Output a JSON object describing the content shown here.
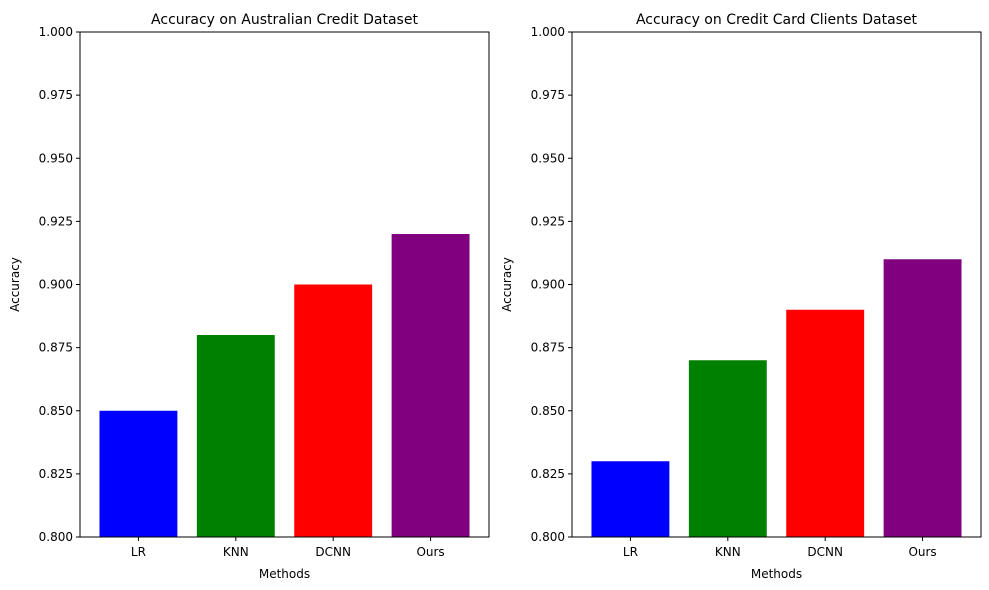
{
  "chart_data": [
    {
      "type": "bar",
      "title": "Accuracy on Australian Credit Dataset",
      "xlabel": "Methods",
      "ylabel": "Accuracy",
      "categories": [
        "LR",
        "KNN",
        "DCNN",
        "Ours"
      ],
      "values": [
        0.85,
        0.88,
        0.9,
        0.92
      ],
      "colors": [
        "#0000ff",
        "#008000",
        "#ff0000",
        "#800080"
      ],
      "ylim": [
        0.8,
        1.0
      ],
      "yticks": [
        "0.800",
        "0.825",
        "0.850",
        "0.875",
        "0.900",
        "0.925",
        "0.950",
        "0.975",
        "1.000"
      ],
      "grid": false,
      "legend": "none"
    },
    {
      "type": "bar",
      "title": "Accuracy on Credit Card Clients Dataset",
      "xlabel": "Methods",
      "ylabel": "Accuracy",
      "categories": [
        "LR",
        "KNN",
        "DCNN",
        "Ours"
      ],
      "values": [
        0.83,
        0.87,
        0.89,
        0.91
      ],
      "colors": [
        "#0000ff",
        "#008000",
        "#ff0000",
        "#800080"
      ],
      "ylim": [
        0.8,
        1.0
      ],
      "yticks": [
        "0.800",
        "0.825",
        "0.850",
        "0.875",
        "0.900",
        "0.925",
        "0.950",
        "0.975",
        "1.000"
      ],
      "grid": false,
      "legend": "none"
    }
  ]
}
